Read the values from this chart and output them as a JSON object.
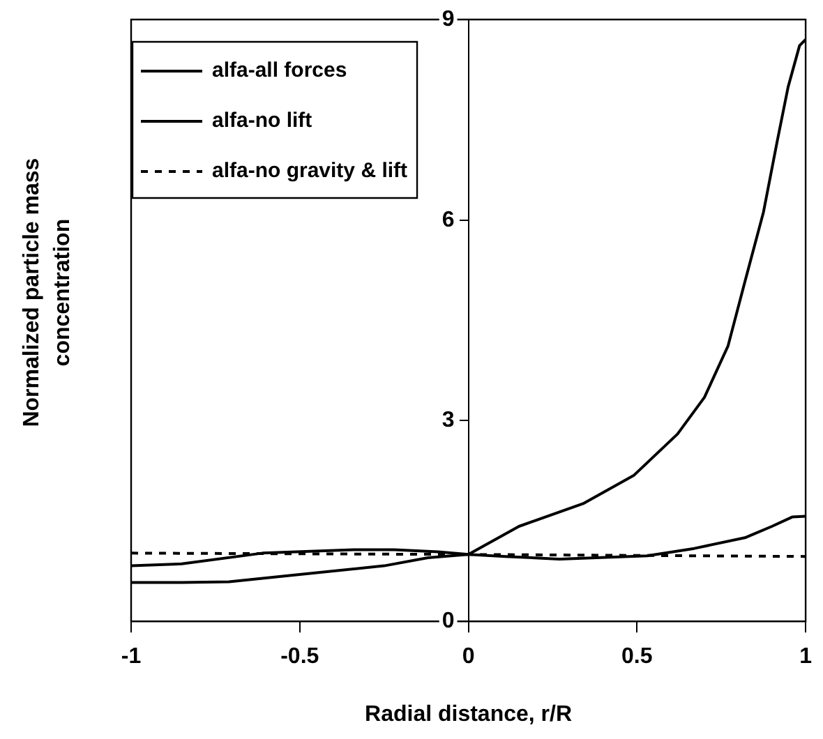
{
  "chart_data": {
    "type": "line",
    "xlabel": "Radial distance, r/R",
    "ylabel": "Normalized particle mass concentration",
    "xlim": [
      -1,
      1
    ],
    "xticks": [
      -1,
      -0.5,
      0,
      0.5,
      1
    ],
    "ylim": [
      0,
      9
    ],
    "yticks": [
      0,
      3,
      6,
      9
    ],
    "grid": false,
    "legend": "top left",
    "marker": "none",
    "series": [
      {
        "name": "alfa-all forces",
        "color": "#000000",
        "line_style": "solid",
        "x": [
          -1,
          -0.85,
          -0.71,
          -0.52,
          -0.25,
          -0.12,
          0,
          0.15,
          0.34,
          0.49,
          0.62,
          0.7,
          0.77,
          0.82,
          0.875,
          0.915,
          0.948,
          0.982,
          1
        ],
        "values": [
          0.58,
          0.58,
          0.59,
          0.69,
          0.83,
          0.95,
          1.0,
          1.42,
          1.76,
          2.18,
          2.8,
          3.35,
          4.12,
          5.08,
          6.12,
          7.16,
          7.99,
          8.61,
          8.7
        ]
      },
      {
        "name": "alfa-no lift",
        "color": "#000000",
        "line_style": "solid",
        "x": [
          -1,
          -0.85,
          -0.61,
          -0.34,
          -0.22,
          -0.09,
          0,
          0.11,
          0.27,
          0.53,
          0.67,
          0.82,
          0.9,
          0.96,
          1
        ],
        "values": [
          0.83,
          0.86,
          1.02,
          1.07,
          1.07,
          1.04,
          1.0,
          0.97,
          0.93,
          0.98,
          1.09,
          1.25,
          1.42,
          1.56,
          1.57
        ]
      },
      {
        "name": "alfa-no gravity & lift",
        "color": "#000000",
        "line_style": "dashed",
        "x": [
          -1,
          0,
          1
        ],
        "values": [
          1.02,
          1.0,
          0.97
        ]
      }
    ]
  }
}
